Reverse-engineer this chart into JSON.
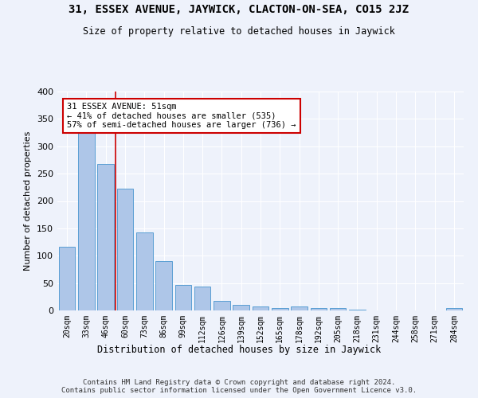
{
  "title": "31, ESSEX AVENUE, JAYWICK, CLACTON-ON-SEA, CO15 2JZ",
  "subtitle": "Size of property relative to detached houses in Jaywick",
  "xlabel": "Distribution of detached houses by size in Jaywick",
  "ylabel": "Number of detached properties",
  "categories": [
    "20sqm",
    "33sqm",
    "46sqm",
    "60sqm",
    "73sqm",
    "86sqm",
    "99sqm",
    "112sqm",
    "126sqm",
    "139sqm",
    "152sqm",
    "165sqm",
    "178sqm",
    "192sqm",
    "205sqm",
    "218sqm",
    "231sqm",
    "244sqm",
    "258sqm",
    "271sqm",
    "284sqm"
  ],
  "values": [
    116,
    332,
    267,
    223,
    142,
    90,
    46,
    43,
    18,
    10,
    7,
    5,
    7,
    4,
    4,
    1,
    0,
    0,
    0,
    0,
    5
  ],
  "bar_color": "#aec6e8",
  "bar_edge_color": "#5a9fd4",
  "background_color": "#eef2fb",
  "grid_color": "#ffffff",
  "annotation_text": "31 ESSEX AVENUE: 51sqm\n← 41% of detached houses are smaller (535)\n57% of semi-detached houses are larger (736) →",
  "annotation_box_color": "#ffffff",
  "annotation_box_edge": "#cc0000",
  "red_line_x": 2.5,
  "ylim": [
    0,
    400
  ],
  "yticks": [
    0,
    50,
    100,
    150,
    200,
    250,
    300,
    350,
    400
  ],
  "footer": "Contains HM Land Registry data © Crown copyright and database right 2024.\nContains public sector information licensed under the Open Government Licence v3.0."
}
